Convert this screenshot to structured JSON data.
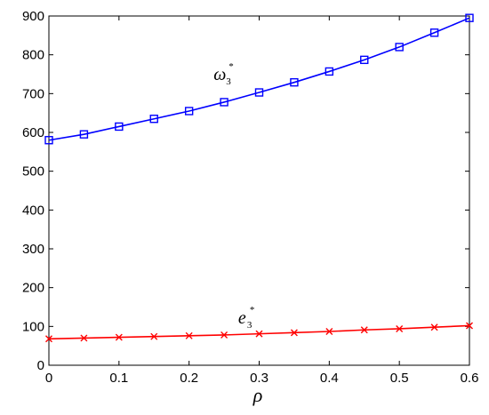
{
  "chart_data": {
    "type": "line",
    "x": [
      0,
      0.05,
      0.1,
      0.15,
      0.2,
      0.25,
      0.3,
      0.35,
      0.4,
      0.45,
      0.5,
      0.55,
      0.6
    ],
    "series": [
      {
        "values": [
          580,
          595,
          615,
          635,
          655,
          678,
          703,
          729,
          757,
          787,
          820,
          857,
          895
        ],
        "color": "#0000ff",
        "marker": "square"
      },
      {
        "values": [
          68,
          70,
          72,
          74,
          76,
          78,
          81,
          84,
          87,
          91,
          94,
          98,
          102
        ],
        "color": "#ff0000",
        "marker": "x"
      }
    ],
    "xlabel": "ρ",
    "ylabel": "",
    "title": "",
    "xlim": [
      0,
      0.6
    ],
    "ylim": [
      0,
      900
    ],
    "xticks": [
      "0",
      "0.1",
      "0.2",
      "0.3",
      "0.4",
      "0.5",
      "0.6"
    ],
    "yticks": [
      "0",
      "100",
      "200",
      "300",
      "400",
      "500",
      "600",
      "700",
      "800",
      "900"
    ],
    "grid": false,
    "annotations": [
      {
        "text": "ω",
        "sub": "3",
        "sup": "*",
        "x": 0.235,
        "y": 735
      },
      {
        "text": "e",
        "sub": "3",
        "sup": "*",
        "x": 0.27,
        "y": 108
      }
    ]
  }
}
